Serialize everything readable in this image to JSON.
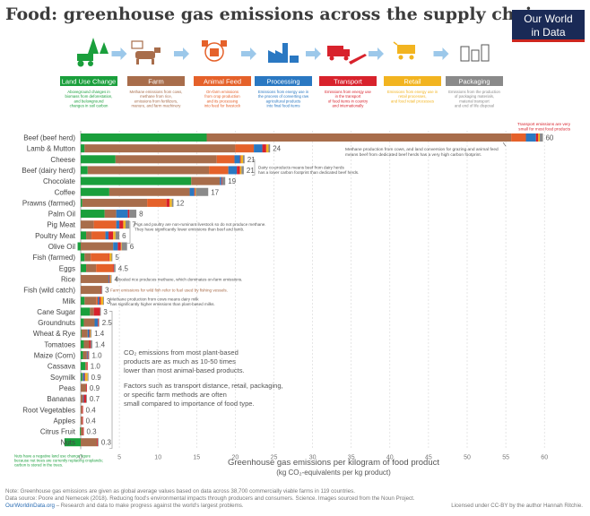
{
  "header": {
    "title": "Food: greenhouse gas emissions across the supply chain",
    "logo_line1": "Our World",
    "logo_line2": "in Data"
  },
  "stages": [
    {
      "label": "Land Use Change",
      "color": "#1a9f3c",
      "icon": "tractor-trees-icon",
      "desc": [
        "Aboveground changes in",
        "biomass from deforestation,",
        "and belowground",
        "changes in soil carbon"
      ]
    },
    {
      "label": "Farm",
      "color": "#a86d4b",
      "icon": "cattle-field-icon",
      "desc": [
        "Methane emissions from cows,",
        "methane from rice,",
        "emissions from fertilizers,",
        "manure, and farm machinery"
      ]
    },
    {
      "label": "Animal Feed",
      "color": "#e5612a",
      "icon": "feed-crops-icon",
      "desc": [
        "On-farm emissions",
        "from crop production",
        "and its processing",
        "into feed for livestock"
      ]
    },
    {
      "label": "Processing",
      "color": "#2a78c2",
      "icon": "factory-icon",
      "desc": [
        "Emissions from energy use in",
        "the process of converting raw",
        "agricultural products",
        "into final food items"
      ]
    },
    {
      "label": "Transport",
      "color": "#d8222c",
      "icon": "truck-plane-icon",
      "desc": [
        "Emissions from energy use",
        "in the transport",
        "of food items in country",
        "and internationally"
      ]
    },
    {
      "label": "Retail",
      "color": "#f2b420",
      "icon": "shopping-cart-icon",
      "desc": [
        "Emissions from energy use in",
        "retail processes,",
        "and food retail processes"
      ]
    },
    {
      "label": "Packaging",
      "color": "#8a8a8a",
      "icon": "packaging-icon",
      "desc": [
        "Emissions from the production",
        "of packaging materials,",
        "material transport",
        "and end of life disposal"
      ]
    }
  ],
  "chart_data": {
    "type": "bar",
    "orientation": "horizontal",
    "stacked": true,
    "xlabel": "Greenhouse gas emissions per kilogram of food product",
    "xlabel_sub": "(kg CO₂-equivalents per kg product)",
    "xlim": [
      0,
      60
    ],
    "xticks": [
      0,
      5,
      10,
      15,
      20,
      25,
      30,
      35,
      40,
      45,
      50,
      55,
      60
    ],
    "grid": "vertical dashed",
    "series_order": [
      "Land Use Change",
      "Farm",
      "Animal Feed",
      "Processing",
      "Transport",
      "Retail",
      "Packaging"
    ],
    "items": [
      {
        "name": "Beef (beef herd)",
        "total": "60",
        "values": [
          16.3,
          39.4,
          1.9,
          1.3,
          0.3,
          0.2,
          0.4
        ]
      },
      {
        "name": "Lamb & Mutton",
        "total": "24",
        "values": [
          0.5,
          19.5,
          2.4,
          1.1,
          0.5,
          0.3,
          0.2
        ]
      },
      {
        "name": "Cheese",
        "total": "21",
        "values": [
          4.5,
          13.1,
          2.3,
          0.7,
          0.1,
          0.3,
          0.2
        ]
      },
      {
        "name": "Beef (dairy herd)",
        "total": "21",
        "values": [
          0.9,
          15.7,
          2.5,
          1.1,
          0.4,
          0.2,
          0.3
        ]
      },
      {
        "name": "Chocolate",
        "total": "19",
        "values": [
          14.3,
          3.7,
          0.0,
          0.2,
          0.1,
          0.0,
          0.4
        ]
      },
      {
        "name": "Coffee",
        "total": "17",
        "values": [
          3.7,
          10.4,
          0.0,
          0.6,
          0.1,
          0.1,
          1.6
        ]
      },
      {
        "name": "Prawns (farmed)",
        "total": "12",
        "values": [
          0.2,
          8.4,
          2.5,
          0.0,
          0.4,
          0.3,
          0.2
        ]
      },
      {
        "name": "Palm Oil",
        "total": "8",
        "values": [
          3.1,
          1.5,
          0.0,
          1.5,
          0.2,
          0.0,
          0.9
        ]
      },
      {
        "name": "Pig Meat",
        "total": "7",
        "values": [
          0.0,
          1.7,
          2.9,
          0.4,
          0.5,
          0.3,
          0.5
        ]
      },
      {
        "name": "Poultry Meat",
        "total": "6",
        "values": [
          0.7,
          0.7,
          1.8,
          0.4,
          0.6,
          0.3,
          0.5
        ]
      },
      {
        "name": "Olive Oil",
        "total": "6",
        "values": [
          -0.4,
          4.2,
          0.0,
          0.6,
          0.4,
          0.1,
          0.7
        ]
      },
      {
        "name": "Fish (farmed)",
        "total": "5",
        "values": [
          0.5,
          0.8,
          2.3,
          0.0,
          0.1,
          0.3,
          0.1
        ]
      },
      {
        "name": "Eggs",
        "total": "4.5",
        "values": [
          0.7,
          1.3,
          2.2,
          0.0,
          0.1,
          0.0,
          0.2
        ]
      },
      {
        "name": "Rice",
        "total": "4",
        "values": [
          0.0,
          3.6,
          0.0,
          0.1,
          0.1,
          0.1,
          0.1
        ]
      },
      {
        "name": "Fish (wild catch)",
        "total": "3",
        "values": [
          0.0,
          2.6,
          0.0,
          0.0,
          0.1,
          0.0,
          0.1
        ]
      },
      {
        "name": "Milk",
        "total": "3",
        "values": [
          0.5,
          1.5,
          0.2,
          0.2,
          0.2,
          0.3,
          0.1
        ]
      },
      {
        "name": "Cane Sugar",
        "total": "3",
        "values": [
          1.2,
          0.5,
          0.0,
          0.0,
          0.8,
          0.0,
          0.1
        ]
      },
      {
        "name": "Groundnuts",
        "total": "2.5",
        "values": [
          0.4,
          1.4,
          0.0,
          0.4,
          0.1,
          0.0,
          0.1
        ]
      },
      {
        "name": "Wheat & Rye",
        "total": "1.4",
        "values": [
          0.1,
          0.8,
          0.0,
          0.2,
          0.1,
          0.1,
          0.1
        ]
      },
      {
        "name": "Tomatoes",
        "total": "1.4",
        "values": [
          0.4,
          0.7,
          0.0,
          0.0,
          0.2,
          0.0,
          0.2
        ]
      },
      {
        "name": "Maize (Corn)",
        "total": "1.0",
        "values": [
          0.3,
          0.5,
          0.0,
          0.1,
          0.1,
          0.0,
          0.1
        ]
      },
      {
        "name": "Cassava",
        "total": "1.0",
        "values": [
          0.6,
          0.2,
          0.0,
          0.0,
          0.1,
          0.0,
          0.0
        ]
      },
      {
        "name": "Soymilk",
        "total": "0.9",
        "values": [
          0.2,
          0.1,
          0.0,
          0.2,
          0.1,
          0.3,
          0.1
        ]
      },
      {
        "name": "Peas",
        "total": "0.9",
        "values": [
          0.0,
          0.7,
          0.0,
          0.0,
          0.1,
          0.0,
          0.0
        ]
      },
      {
        "name": "Bananas",
        "total": "0.7",
        "values": [
          0.0,
          0.3,
          0.0,
          0.1,
          0.3,
          0.0,
          0.1
        ]
      },
      {
        "name": "Root Vegetables",
        "total": "0.4",
        "values": [
          0.0,
          0.2,
          0.0,
          0.0,
          0.1,
          0.0,
          0.0
        ]
      },
      {
        "name": "Apples",
        "total": "0.4",
        "values": [
          0.0,
          0.2,
          0.0,
          0.0,
          0.1,
          0.0,
          0.0
        ]
      },
      {
        "name": "Citrus Fruit",
        "total": "0.3",
        "values": [
          -0.1,
          0.3,
          0.0,
          0.0,
          0.1,
          0.0,
          0.0
        ]
      },
      {
        "name": "Nuts",
        "total": "0.3",
        "values": [
          -2.1,
          2.1,
          0.0,
          0.0,
          0.1,
          0.0,
          0.1
        ]
      }
    ],
    "annotations": {
      "transport_note": [
        "Transport emissions are very",
        "small for most food products"
      ],
      "beef": [
        "Methane production from cows, and land conversion for grazing and animal feed",
        "means beef from dedicated beef herds has a very high carbon footprint."
      ],
      "dairy": [
        "Dairy co-products means beef from dairy herds",
        "has a lower carbon footprint than dedicated beef herds."
      ],
      "pigs": [
        "Pigs and poultry are non-ruminant livestock so do not produce methane.",
        "They have significantly lower emissions than beef and lamb."
      ],
      "rice": "Flooded rice produces methane, which dominates on-farm emissions.",
      "fish": "Farm emissions for wild fish refer to fuel used by fishing vessels.",
      "milk": [
        "Methane production from cows means dairy milk",
        "has significantly higher emissions than plant-based milks."
      ],
      "plant1": [
        "CO₂ emissions from most plant-based",
        "products are as much as 10-50 times",
        "lower than most animal-based products."
      ],
      "plant2": [
        "Factors such as transport distance, retail, packaging,",
        "or specific farm methods are often",
        "small compared to importance of food type."
      ],
      "nuts": [
        "Nuts have a negative land use change figure",
        "because nut trees are currently replacing croplands;",
        "carbon is stored in the trees."
      ]
    }
  },
  "footer": {
    "note": "Note: Greenhouse gas emissions are given as global average values based on data across 38,700 commercially viable farms in 119 countries.",
    "source": "Data source: Poore and Nemecek (2018). Reducing food's environmental impacts through producers and consumers. Science. Images sourced from the Noun Project.",
    "site": "OurWorldinData.org",
    "tagline": " – Research and data to make progress against the world's largest problems.",
    "license": "Licensed under CC-BY by the author Hannah Ritchie."
  }
}
